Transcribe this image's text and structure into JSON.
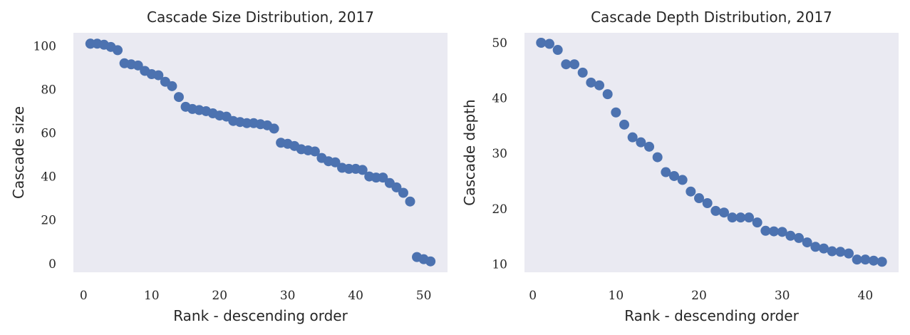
{
  "chart_data": [
    {
      "type": "scatter",
      "title": "Cascade Size Distribution, 2017",
      "xlabel": "Rank - descending order",
      "ylabel": "Cascade size",
      "xlim": [
        -1.5,
        53.5
      ],
      "ylim": [
        -4,
        106
      ],
      "xticks": [
        0,
        10,
        20,
        30,
        40,
        50
      ],
      "yticks": [
        0,
        20,
        40,
        60,
        80,
        100
      ],
      "grid": false,
      "legend": "none",
      "color": "#4c72b0",
      "x": [
        1,
        1,
        2,
        3,
        4,
        5,
        6,
        7,
        8,
        9,
        10,
        11,
        12,
        13,
        14,
        15,
        16,
        17,
        18,
        19,
        20,
        21,
        22,
        23,
        24,
        25,
        26,
        27,
        28,
        29,
        30,
        31,
        32,
        33,
        34,
        35,
        36,
        37,
        38,
        39,
        40,
        41,
        42,
        43,
        44,
        45,
        46,
        47,
        48,
        49,
        50,
        51
      ],
      "y": [
        101,
        101,
        101,
        100.5,
        99.5,
        98,
        92,
        91.5,
        91,
        88.5,
        87,
        86.5,
        83.5,
        81.5,
        76.5,
        72,
        71,
        70.5,
        70,
        69,
        68,
        67.5,
        65.5,
        65,
        64.5,
        64.5,
        64,
        63.5,
        62,
        55.5,
        55,
        54,
        52.5,
        52,
        51.5,
        48.5,
        47,
        46.5,
        44,
        43.5,
        43.5,
        43,
        40,
        39.5,
        39.5,
        37,
        35,
        32.5,
        28.5,
        3,
        2,
        1
      ]
    },
    {
      "type": "scatter",
      "title": "Cascade Depth Distribution, 2017",
      "xlabel": "Rank - descending order",
      "ylabel": "Cascade depth",
      "xlim": [
        -1,
        44
      ],
      "ylim": [
        8.5,
        51.8
      ],
      "xticks": [
        0,
        10,
        20,
        30,
        40
      ],
      "yticks": [
        10,
        20,
        30,
        40,
        50
      ],
      "grid": false,
      "legend": "none",
      "color": "#4c72b0",
      "x": [
        1,
        1,
        2,
        3,
        4,
        5,
        6,
        7,
        8,
        9,
        10,
        11,
        12,
        13,
        14,
        15,
        16,
        17,
        18,
        19,
        20,
        21,
        22,
        23,
        24,
        25,
        26,
        27,
        28,
        29,
        30,
        31,
        32,
        33,
        34,
        35,
        36,
        37,
        38,
        39,
        40,
        41,
        42
      ],
      "y": [
        50,
        50,
        49.8,
        48.7,
        46.1,
        46.1,
        44.6,
        42.8,
        42.3,
        40.7,
        37.4,
        35.2,
        32.9,
        32,
        31.2,
        29.3,
        26.6,
        25.9,
        25.2,
        23.1,
        21.9,
        21,
        19.6,
        19.3,
        18.4,
        18.4,
        18.4,
        17.5,
        16,
        15.9,
        15.8,
        15.1,
        14.7,
        13.9,
        13.1,
        12.8,
        12.3,
        12.2,
        11.9,
        10.8,
        10.8,
        10.6,
        10.4
      ]
    }
  ]
}
